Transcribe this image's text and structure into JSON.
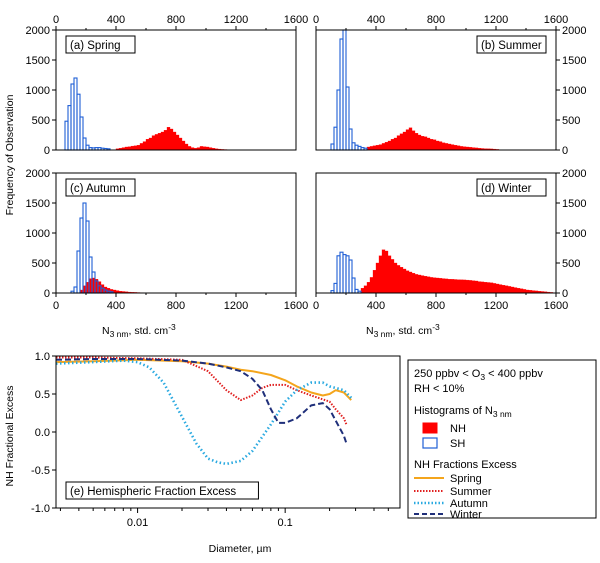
{
  "chart_data": [
    {
      "id": "a",
      "type": "bar",
      "panel_label": "(a) Spring",
      "xlim": [
        0,
        1600
      ],
      "ylim": [
        0,
        2000
      ],
      "top_tick_labels": [
        "0",
        "400",
        "800",
        "1200",
        "1600"
      ],
      "y_tick_labels": [
        "0",
        "500",
        "1000",
        "1500",
        "2000"
      ],
      "bin_width": 20,
      "series": [
        {
          "name": "SH",
          "bin_starts": [
            60,
            80,
            100,
            120,
            140,
            160,
            180,
            200,
            220,
            240,
            260,
            280,
            300,
            320,
            340
          ],
          "values": [
            480,
            740,
            1100,
            1200,
            930,
            550,
            200,
            80,
            40,
            35,
            40,
            40,
            30,
            25,
            20
          ]
        },
        {
          "name": "NH",
          "bin_starts": [
            400,
            420,
            440,
            460,
            480,
            500,
            520,
            540,
            560,
            580,
            600,
            620,
            640,
            660,
            680,
            700,
            720,
            740,
            760,
            780,
            800,
            820,
            840,
            860,
            880,
            900,
            920,
            940,
            960,
            980,
            1000,
            1020,
            1040,
            1060,
            1080,
            1100,
            1120
          ],
          "values": [
            20,
            30,
            40,
            50,
            55,
            65,
            70,
            80,
            110,
            140,
            180,
            200,
            240,
            260,
            280,
            300,
            330,
            380,
            350,
            300,
            250,
            200,
            150,
            100,
            60,
            40,
            30,
            40,
            60,
            55,
            50,
            40,
            30,
            20,
            15,
            10,
            8
          ]
        }
      ]
    },
    {
      "id": "b",
      "type": "bar",
      "panel_label": "(b) Summer",
      "xlim": [
        0,
        1600
      ],
      "ylim": [
        0,
        2000
      ],
      "top_tick_labels": [
        "0",
        "400",
        "800",
        "1200",
        "1600"
      ],
      "y_tick_labels": [
        "0",
        "500",
        "1000",
        "1500",
        "2000"
      ],
      "bin_width": 20,
      "series": [
        {
          "name": "SH",
          "bin_starts": [
            100,
            120,
            140,
            160,
            180,
            200,
            220,
            240,
            260,
            280,
            300,
            320
          ],
          "values": [
            100,
            380,
            1000,
            1850,
            2000,
            1050,
            350,
            120,
            80,
            60,
            40,
            30
          ]
        },
        {
          "name": "NH",
          "bin_starts": [
            340,
            360,
            380,
            400,
            420,
            440,
            460,
            480,
            500,
            520,
            540,
            560,
            580,
            600,
            620,
            640,
            660,
            680,
            700,
            720,
            740,
            760,
            780,
            800,
            820,
            840,
            860,
            880,
            900,
            920,
            940,
            960,
            980,
            1000,
            1020,
            1040,
            1060,
            1080,
            1100,
            1120,
            1140,
            1160,
            1180,
            1200
          ],
          "values": [
            50,
            60,
            70,
            80,
            90,
            110,
            130,
            150,
            180,
            200,
            240,
            270,
            300,
            340,
            370,
            320,
            280,
            250,
            230,
            220,
            200,
            180,
            170,
            150,
            140,
            120,
            110,
            100,
            90,
            80,
            70,
            60,
            55,
            50,
            45,
            40,
            35,
            30,
            25,
            22,
            20,
            18,
            15,
            10
          ]
        }
      ]
    },
    {
      "id": "c",
      "type": "bar",
      "panel_label": "(c) Autumn",
      "xlim": [
        0,
        1600
      ],
      "ylim": [
        0,
        2000
      ],
      "bottom_tick_labels": [
        "0",
        "400",
        "800",
        "1200",
        "1600"
      ],
      "y_tick_labels": [
        "0",
        "500",
        "1000",
        "1500",
        "2000"
      ],
      "bin_width": 20,
      "series": [
        {
          "name": "SH",
          "bin_starts": [
            100,
            120,
            140,
            160,
            180,
            200,
            220,
            240,
            260,
            280,
            300,
            320,
            340,
            360
          ],
          "values": [
            30,
            100,
            700,
            1250,
            1500,
            1200,
            600,
            350,
            200,
            120,
            80,
            50,
            30,
            20
          ]
        },
        {
          "name": "NH",
          "bin_starts": [
            160,
            180,
            200,
            220,
            240,
            260,
            280,
            300,
            320,
            340,
            360,
            380,
            400,
            420,
            440,
            460,
            480,
            500,
            520,
            540,
            560,
            580,
            600
          ],
          "values": [
            50,
            120,
            180,
            240,
            250,
            230,
            190,
            140,
            100,
            80,
            60,
            50,
            40,
            30,
            25,
            20,
            15,
            12,
            10,
            8,
            6,
            5,
            4
          ]
        }
      ]
    },
    {
      "id": "d",
      "type": "bar",
      "panel_label": "(d) Winter",
      "xlim": [
        0,
        1600
      ],
      "ylim": [
        0,
        2000
      ],
      "bottom_tick_labels": [
        "0",
        "400",
        "800",
        "1200",
        "1600"
      ],
      "y_tick_labels": [
        "0",
        "500",
        "1000",
        "1500",
        "2000"
      ],
      "bin_width": 20,
      "series": [
        {
          "name": "SH",
          "bin_starts": [
            100,
            120,
            140,
            160,
            180,
            200,
            220,
            240,
            260,
            280
          ],
          "values": [
            40,
            160,
            620,
            680,
            640,
            620,
            550,
            250,
            60,
            30
          ]
        },
        {
          "name": "NH",
          "bin_starts": [
            300,
            320,
            340,
            360,
            380,
            400,
            420,
            440,
            460,
            480,
            500,
            520,
            540,
            560,
            580,
            600,
            620,
            640,
            660,
            680,
            700,
            720,
            740,
            760,
            780,
            800,
            820,
            840,
            860,
            880,
            900,
            920,
            940,
            960,
            980,
            1000,
            1020,
            1040,
            1060,
            1080,
            1100,
            1120,
            1140,
            1160,
            1180,
            1200,
            1220,
            1240,
            1260,
            1280,
            1300,
            1320,
            1340,
            1360,
            1380,
            1400,
            1420,
            1440,
            1460,
            1480,
            1500,
            1520,
            1540,
            1560
          ],
          "values": [
            80,
            120,
            180,
            260,
            380,
            500,
            620,
            720,
            700,
            620,
            560,
            500,
            460,
            430,
            400,
            370,
            350,
            330,
            310,
            300,
            290,
            280,
            270,
            260,
            255,
            250,
            245,
            240,
            235,
            230,
            228,
            225,
            222,
            220,
            218,
            215,
            210,
            205,
            200,
            190,
            185,
            180,
            175,
            170,
            160,
            150,
            140,
            130,
            120,
            110,
            100,
            90,
            80,
            70,
            60,
            50,
            45,
            40,
            35,
            30,
            25,
            20,
            15,
            10
          ]
        }
      ]
    },
    {
      "id": "e",
      "type": "line",
      "panel_label": "(e) Hemispheric Fraction Excess",
      "xlabel": "Diameter, µm",
      "ylabel": "NH Fractional Excess",
      "xscale": "log",
      "xlim": [
        0.0028,
        0.6
      ],
      "ylim": [
        -1.0,
        1.0
      ],
      "x_tick_labels": [
        "0.01",
        "0.1"
      ],
      "y_tick_labels": [
        "-1.0",
        "-0.5",
        "0.0",
        "0.5",
        "1.0"
      ],
      "series": [
        {
          "name": "Spring",
          "color": "#f4a51c",
          "style": "solid",
          "x": [
            0.0028,
            0.005,
            0.01,
            0.02,
            0.03,
            0.04,
            0.05,
            0.06,
            0.08,
            0.1,
            0.12,
            0.15,
            0.18,
            0.2,
            0.22,
            0.25,
            0.28
          ],
          "y": [
            0.92,
            0.93,
            0.95,
            0.93,
            0.9,
            0.86,
            0.82,
            0.8,
            0.75,
            0.68,
            0.6,
            0.52,
            0.48,
            0.5,
            0.55,
            0.52,
            0.42
          ]
        },
        {
          "name": "Summer",
          "color": "#e02020",
          "style": "dotted",
          "x": [
            0.0028,
            0.005,
            0.01,
            0.02,
            0.03,
            0.04,
            0.05,
            0.06,
            0.07,
            0.08,
            0.1,
            0.12,
            0.15,
            0.2,
            0.22,
            0.25,
            0.26
          ],
          "y": [
            0.98,
            0.98,
            0.97,
            0.95,
            0.8,
            0.55,
            0.42,
            0.48,
            0.58,
            0.62,
            0.62,
            0.55,
            0.48,
            0.4,
            0.3,
            0.18,
            0.1
          ]
        },
        {
          "name": "Autumn",
          "color": "#29a9e0",
          "style": "dotted",
          "x": [
            0.0028,
            0.005,
            0.008,
            0.01,
            0.012,
            0.015,
            0.02,
            0.025,
            0.03,
            0.035,
            0.04,
            0.05,
            0.06,
            0.08,
            0.1,
            0.12,
            0.15,
            0.18,
            0.2,
            0.25,
            0.28
          ],
          "y": [
            0.9,
            0.92,
            0.94,
            0.92,
            0.85,
            0.65,
            0.2,
            -0.15,
            -0.35,
            -0.4,
            -0.42,
            -0.38,
            -0.25,
            0.1,
            0.4,
            0.55,
            0.65,
            0.65,
            0.6,
            0.55,
            0.45
          ]
        },
        {
          "name": "Winter",
          "color": "#1f2f7a",
          "style": "dashed",
          "x": [
            0.0028,
            0.005,
            0.01,
            0.02,
            0.03,
            0.04,
            0.05,
            0.06,
            0.07,
            0.08,
            0.09,
            0.1,
            0.12,
            0.15,
            0.18,
            0.2,
            0.22,
            0.25,
            0.26
          ],
          "y": [
            0.95,
            0.96,
            0.96,
            0.94,
            0.9,
            0.85,
            0.8,
            0.7,
            0.55,
            0.3,
            0.12,
            0.12,
            0.18,
            0.35,
            0.38,
            0.3,
            0.15,
            -0.05,
            -0.15
          ]
        }
      ]
    }
  ],
  "figure": {
    "hist_ylabel": "Frequency of Observation",
    "hist_xlabel_main": "N",
    "hist_xlabel_sub": "3 nm",
    "hist_xlabel_rest": ", std. cm",
    "hist_xlabel_sup": "-3",
    "nh_color": "#ff0000",
    "sh_color": "#1f5fd6"
  },
  "legend": {
    "condition_line1": "250 ppbv < O",
    "condition_line1_sub": "3",
    "condition_line1_rest": " < 400 ppbv",
    "condition_line2": "RH < 10%",
    "hist_title": "Histograms of N",
    "hist_title_sub": "3 nm",
    "hist_items": [
      "NH",
      "SH"
    ],
    "line_title": "NH Fractions Excess",
    "line_items": [
      "Spring",
      "Summer",
      "Autumn",
      "Winter"
    ]
  }
}
